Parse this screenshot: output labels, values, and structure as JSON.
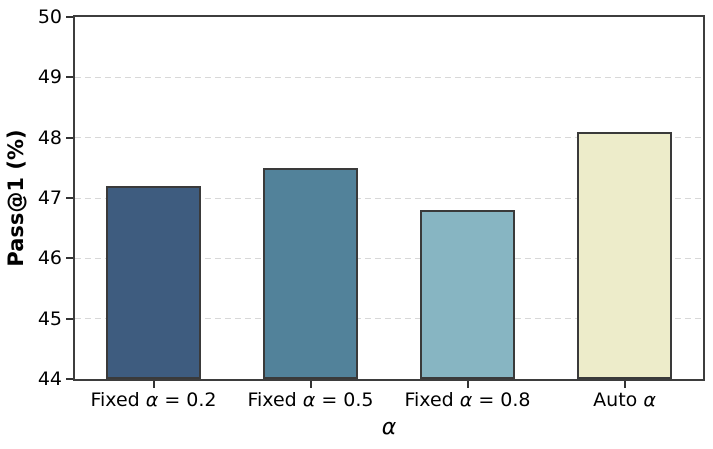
{
  "chart_data": {
    "type": "bar",
    "title": "",
    "categories": [
      "Fixed α = 0.2",
      "Fixed α = 0.5",
      "Fixed α = 0.8",
      "Auto α"
    ],
    "values": [
      47.2,
      47.5,
      46.8,
      48.1
    ],
    "bar_colors": [
      "#3e5c7f",
      "#52829a",
      "#87b5c2",
      "#edecca"
    ],
    "bar_edge_color": "#3a3a3a",
    "xlabel": "α",
    "ylabel": "Pass@1 (%)",
    "ylim": [
      44,
      50
    ],
    "yticks": [
      44,
      45,
      46,
      47,
      48,
      49,
      50
    ],
    "bar_width_fraction": 0.6,
    "grid": "horizontal-dashed",
    "grid_color": "#d8d8d8",
    "legend": "none"
  }
}
